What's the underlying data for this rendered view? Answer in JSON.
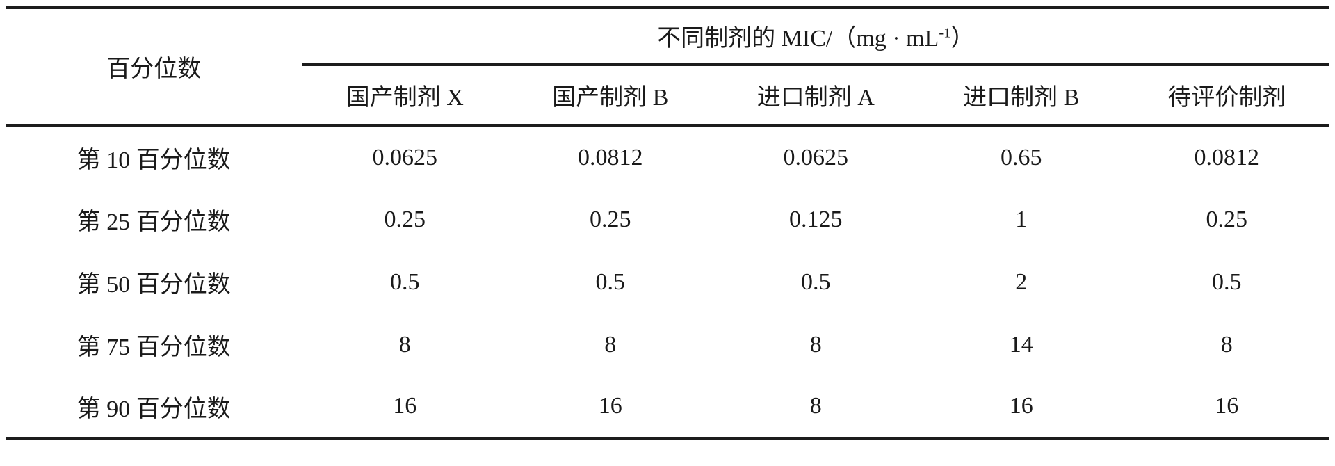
{
  "table": {
    "stub_header": "百分位数",
    "spanner": {
      "prefix": "不同制剂的 MIC/（mg · mL",
      "sup": "-1",
      "suffix": "）"
    },
    "columns": [
      "国产制剂 X",
      "国产制剂 B",
      "进口制剂 A",
      "进口制剂 B",
      "待评价制剂"
    ],
    "rows": [
      {
        "label": "第 10 百分位数",
        "values": [
          "0.0625",
          "0.0812",
          "0.0625",
          "0.65",
          "0.0812"
        ]
      },
      {
        "label": "第 25 百分位数",
        "values": [
          "0.25",
          "0.25",
          "0.125",
          "1",
          "0.25"
        ]
      },
      {
        "label": "第 50 百分位数",
        "values": [
          "0.5",
          "0.5",
          "0.5",
          "2",
          "0.5"
        ]
      },
      {
        "label": "第 75 百分位数",
        "values": [
          "8",
          "8",
          "8",
          "14",
          "8"
        ]
      },
      {
        "label": "第 90 百分位数",
        "values": [
          "16",
          "16",
          "8",
          "16",
          "16"
        ]
      }
    ]
  },
  "chart_data": {
    "type": "table",
    "title": "不同制剂的 MIC/（mg·mL⁻¹）",
    "row_header": "百分位数",
    "columns": [
      "国产制剂 X",
      "国产制剂 B",
      "进口制剂 A",
      "进口制剂 B",
      "待评价制剂"
    ],
    "rows": [
      "第 10 百分位数",
      "第 25 百分位数",
      "第 50 百分位数",
      "第 75 百分位数",
      "第 90 百分位数"
    ],
    "series": [
      {
        "name": "国产制剂 X",
        "values": [
          0.0625,
          0.25,
          0.5,
          8,
          16
        ]
      },
      {
        "name": "国产制剂 B",
        "values": [
          0.0812,
          0.25,
          0.5,
          8,
          16
        ]
      },
      {
        "name": "进口制剂 A",
        "values": [
          0.0625,
          0.125,
          0.5,
          8,
          8
        ]
      },
      {
        "name": "进口制剂 B",
        "values": [
          0.65,
          1,
          2,
          14,
          16
        ]
      },
      {
        "name": "待评价制剂",
        "values": [
          0.0812,
          0.25,
          0.5,
          8,
          16
        ]
      }
    ]
  },
  "colors": {
    "text": "#1a1a1a",
    "rule": "#1c1c1c",
    "background": "#ffffff"
  }
}
